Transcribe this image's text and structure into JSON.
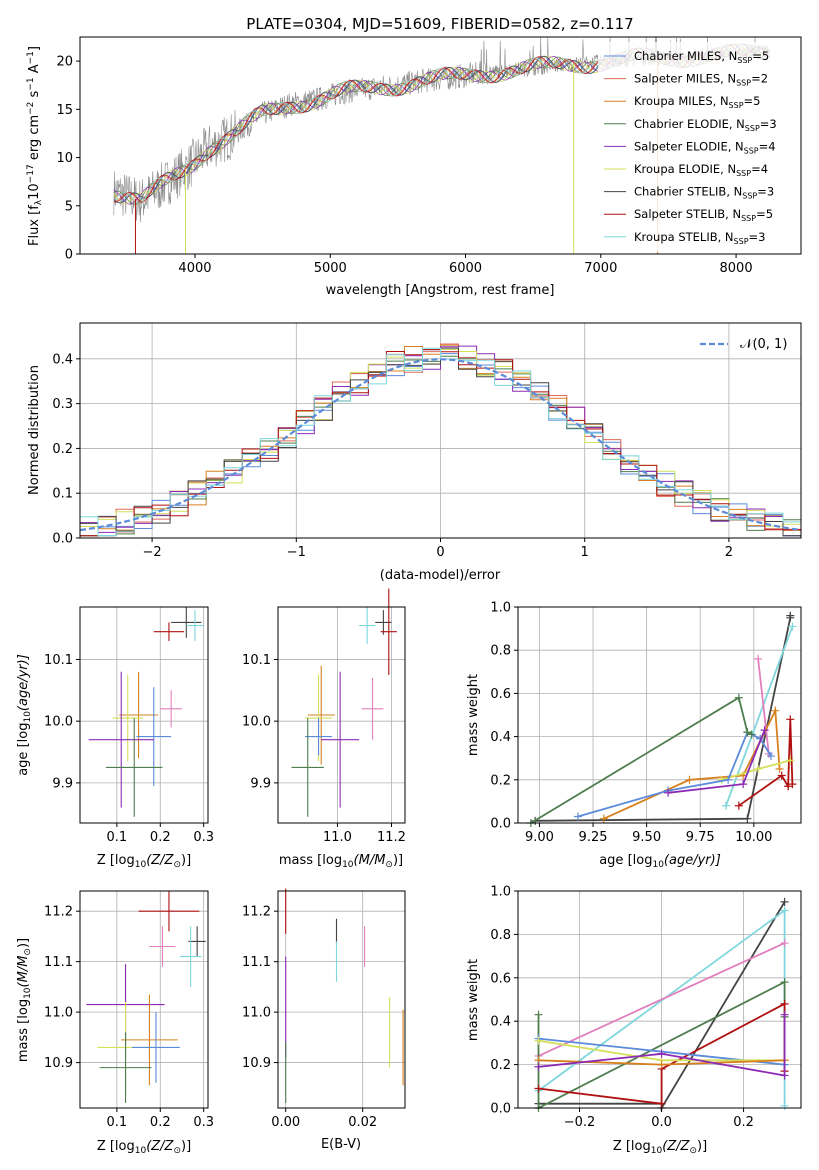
{
  "colors": {
    "chabrier_miles": "#5b8bd9",
    "salpeter_miles": "#e06a5a",
    "kroupa_miles": "#d7801f",
    "chabrier_elodie": "#4e7d4e",
    "salpeter_elodie": "#8e2bb5",
    "kroupa_elodie": "#d4e05a",
    "chabrier_stelib": "#444444",
    "salpeter_stelib": "#b01010",
    "kroupa_stelib": "#7fd7dd",
    "pink": "#e27fbf",
    "normal_curve": "#5b8bd9"
  },
  "panel_spectrum": {
    "title": "PLATE=0304, MJD=51609, FIBERID=0582, z=0.117",
    "xlabel": "wavelength [Angstrom, rest frame]",
    "ylabel": "Flux [f",
    "ylabel_parts": {
      "pre": "Flux [f",
      "sub": "λ",
      "mid1": "10",
      "sup1": "−17",
      "mid2": " erg cm",
      "sup2": "−2",
      "mid3": " s",
      "sup3": "−1",
      "mid4": " A",
      "sup4": "−1",
      "post": "]"
    },
    "xticks": [
      "4000",
      "5000",
      "6000",
      "7000",
      "8000"
    ],
    "yticks": [
      "0",
      "5",
      "10",
      "15",
      "20"
    ],
    "legend": [
      {
        "label": "Chabrier MILES, N",
        "sub": "SSP",
        "val": "=5",
        "color": "chabrier_miles"
      },
      {
        "label": "Salpeter MILES, N",
        "sub": "SSP",
        "val": "=2",
        "color": "salpeter_miles"
      },
      {
        "label": "Kroupa MILES, N",
        "sub": "SSP",
        "val": "=5",
        "color": "kroupa_miles"
      },
      {
        "label": "Chabrier ELODIE, N",
        "sub": "SSP",
        "val": "=3",
        "color": "chabrier_elodie"
      },
      {
        "label": "Salpeter ELODIE, N",
        "sub": "SSP",
        "val": "=4",
        "color": "salpeter_elodie"
      },
      {
        "label": "Kroupa ELODIE, N",
        "sub": "SSP",
        "val": "=4",
        "color": "kroupa_elodie"
      },
      {
        "label": "Chabrier STELIB, N",
        "sub": "SSP",
        "val": "=3",
        "color": "chabrier_stelib"
      },
      {
        "label": "Salpeter STELIB, N",
        "sub": "SSP",
        "val": "=5",
        "color": "salpeter_stelib"
      },
      {
        "label": "Kroupa STELIB, N",
        "sub": "SSP",
        "val": "=3",
        "color": "kroupa_stelib"
      }
    ]
  },
  "panel_hist": {
    "xlabel": "(data-model)/error",
    "ylabel": "Normed distribution",
    "xticks": [
      "−2",
      "−1",
      "0",
      "1",
      "2"
    ],
    "yticks": [
      "0.0",
      "0.1",
      "0.2",
      "0.3",
      "0.4"
    ],
    "legend": "𝒩(0, 1)"
  },
  "panel_age_Z": {
    "xlabel": "Z [log",
    "xlabel_parts": {
      "pre": "Z [log",
      "sub": "10",
      "post": "(Z/Z",
      "sub2": "⊙",
      "post2": ")]"
    },
    "ylabel_parts": {
      "pre": "age  [log",
      "sub": "10",
      "post": "(age/yr)]"
    },
    "xticks": [
      "0.1",
      "0.2",
      "0.3"
    ],
    "yticks": [
      "9.9",
      "10.0",
      "10.1"
    ]
  },
  "panel_age_mass": {
    "xlabel_parts": {
      "pre": "mass [log",
      "sub": "10",
      "post": "(M/M",
      "sub2": "⊙",
      "post2": ")]"
    },
    "xticks": [
      "11.0",
      "11.2"
    ],
    "yticks": [
      "9.9",
      "10.0",
      "10.1"
    ]
  },
  "panel_mw_age": {
    "xlabel_parts": {
      "pre": "age  [log",
      "sub": "10",
      "post": "(age/yr)]"
    },
    "ylabel": "mass weight",
    "xticks": [
      "9.00",
      "9.25",
      "9.50",
      "9.75",
      "10.00"
    ],
    "yticks": [
      "0.0",
      "0.2",
      "0.4",
      "0.6",
      "0.8",
      "1.0"
    ]
  },
  "panel_mass_Z": {
    "xlabel_parts": {
      "pre": "Z [log",
      "sub": "10",
      "post": "(Z/Z",
      "sub2": "⊙",
      "post2": ")]"
    },
    "ylabel_parts": {
      "pre": "mass [log",
      "sub": "10",
      "post": "(M/M",
      "sub2": "⊙",
      "post2": ")]"
    },
    "xticks": [
      "0.1",
      "0.2",
      "0.3"
    ],
    "yticks": [
      "10.9",
      "11.0",
      "11.1",
      "11.2"
    ]
  },
  "panel_mass_ebv": {
    "xlabel": "E(B-V)",
    "xticks": [
      "0.00",
      "0.02"
    ],
    "yticks": [
      "10.9",
      "11.0",
      "11.1",
      "11.2"
    ]
  },
  "panel_mw_Z": {
    "xlabel_parts": {
      "pre": "Z [log",
      "sub": "10",
      "post": "(Z/Z",
      "sub2": "⊙",
      "post2": ")]"
    },
    "ylabel": "mass weight",
    "xticks": [
      "−0.2",
      "0.0",
      "0.2"
    ],
    "yticks": [
      "0.0",
      "0.2",
      "0.4",
      "0.6",
      "0.8",
      "1.0"
    ]
  },
  "chart_data": [
    {
      "type": "line",
      "title": "PLATE=0304, MJD=51609, FIBERID=0582, z=0.117",
      "xlabel": "wavelength [Angstrom, rest frame]",
      "ylabel": "Flux [fλ10^-17 erg cm^-2 s^-1 A^-1]",
      "xlim": [
        3150,
        8480
      ],
      "ylim": [
        0,
        22.5
      ],
      "continuum": {
        "x": [
          3400,
          3600,
          3800,
          3950,
          4100,
          4300,
          4500,
          4700,
          4900,
          5100,
          5300,
          5500,
          5700,
          5900,
          6100,
          6300,
          6500,
          6700,
          6900,
          7100,
          7300,
          7500,
          7700,
          7900,
          8100,
          8250
        ],
        "y": [
          6.5,
          5.5,
          7.5,
          9.0,
          11.0,
          12.5,
          14.5,
          15.5,
          16.0,
          16.8,
          17.2,
          17.5,
          18.0,
          18.3,
          18.7,
          19.0,
          19.3,
          19.6,
          19.8,
          20.0,
          20.3,
          20.3,
          20.5,
          20.6,
          20.8,
          21.0
        ]
      },
      "series": [
        "Chabrier MILES",
        "Salpeter MILES",
        "Kroupa MILES",
        "Chabrier ELODIE",
        "Salpeter ELODIE",
        "Kroupa ELODIE",
        "Chabrier STELIB",
        "Salpeter STELIB",
        "Kroupa STELIB"
      ]
    },
    {
      "type": "bar",
      "title": "",
      "xlabel": "(data-model)/error",
      "ylabel": "Normed distribution",
      "xlim": [
        -2.5,
        2.5
      ],
      "ylim": [
        0,
        0.48
      ],
      "legend": "N(0,1)"
    },
    {
      "type": "scatter",
      "xlabel": "Z [log10(Z/Zsun)]",
      "ylabel": "age [log10(age/yr)]",
      "xlim": [
        0.015,
        0.31
      ],
      "ylim": [
        9.835,
        10.185
      ],
      "points": [
        {
          "c": "chabrier_stelib",
          "x": 0.26,
          "y": 10.16,
          "xe": 0.035,
          "ye": 0.025
        },
        {
          "c": "salpeter_stelib",
          "x": 0.22,
          "y": 10.145,
          "xe": 0.035,
          "ye": 0.015
        },
        {
          "c": "kroupa_stelib",
          "x": 0.28,
          "y": 10.155,
          "xe": 0.02,
          "ye": 0.025
        },
        {
          "c": "pink",
          "x": 0.225,
          "y": 10.02,
          "xe": 0.025,
          "ye": 0.03
        },
        {
          "c": "kroupa_miles",
          "x": 0.15,
          "y": 10.01,
          "xe": 0.045,
          "ye": 0.07
        },
        {
          "c": "kroupa_elodie",
          "x": 0.125,
          "y": 10.005,
          "xe": 0.035,
          "ye": 0.07
        },
        {
          "c": "chabrier_miles",
          "x": 0.185,
          "y": 9.975,
          "xe": 0.04,
          "ye": 0.08
        },
        {
          "c": "salpeter_elodie",
          "x": 0.11,
          "y": 9.97,
          "xe": 0.075,
          "ye": 0.11
        },
        {
          "c": "chabrier_elodie",
          "x": 0.14,
          "y": 9.925,
          "xe": 0.065,
          "ye": 0.08
        }
      ]
    },
    {
      "type": "scatter",
      "xlabel": "mass [log10(M/Msun)]",
      "ylabel": "",
      "xlim": [
        10.78,
        11.25
      ],
      "ylim": [
        9.835,
        10.185
      ],
      "points": [
        {
          "c": "chabrier_stelib",
          "x": 11.17,
          "y": 10.16,
          "xe": 0.03,
          "ye": 0.02
        },
        {
          "c": "salpeter_stelib",
          "x": 11.19,
          "y": 10.145,
          "xe": 0.03,
          "ye": 0.07
        },
        {
          "c": "kroupa_stelib",
          "x": 11.11,
          "y": 10.155,
          "xe": 0.03,
          "ye": 0.03
        },
        {
          "c": "pink",
          "x": 11.13,
          "y": 10.02,
          "xe": 0.04,
          "ye": 0.05
        },
        {
          "c": "kroupa_miles",
          "x": 10.94,
          "y": 10.01,
          "xe": 0.05,
          "ye": 0.08
        },
        {
          "c": "kroupa_elodie",
          "x": 10.93,
          "y": 10.005,
          "xe": 0.05,
          "ye": 0.07
        },
        {
          "c": "chabrier_miles",
          "x": 10.93,
          "y": 9.975,
          "xe": 0.05,
          "ye": 0.03
        },
        {
          "c": "salpeter_elodie",
          "x": 11.01,
          "y": 9.97,
          "xe": 0.07,
          "ye": 0.11
        },
        {
          "c": "chabrier_elodie",
          "x": 10.89,
          "y": 9.925,
          "xe": 0.06,
          "ye": 0.08
        }
      ]
    },
    {
      "type": "line",
      "xlabel": "age [log10(age/yr)]",
      "ylabel": "mass weight",
      "xlim": [
        8.9,
        10.22
      ],
      "ylim": [
        0,
        1
      ],
      "series": [
        {
          "c": "chabrier_stelib",
          "x": [
            8.98,
            9.97,
            10.17,
            10.17
          ],
          "y": [
            0.01,
            0.02,
            0.95,
            0.96
          ]
        },
        {
          "c": "kroupa_stelib",
          "x": [
            9.87,
            10.18
          ],
          "y": [
            0.08,
            0.91
          ]
        },
        {
          "c": "salpeter_stelib",
          "x": [
            9.93,
            10.13,
            10.16,
            10.17,
            10.18
          ],
          "y": [
            0.08,
            0.22,
            0.17,
            0.48,
            0.18
          ]
        },
        {
          "c": "pink",
          "x": [
            10.02,
            10.07
          ],
          "y": [
            0.76,
            0.32
          ]
        },
        {
          "c": "kroupa_miles",
          "x": [
            9.3,
            9.7,
            9.95,
            10.1,
            10.12
          ],
          "y": [
            0.02,
            0.2,
            0.22,
            0.52,
            0.25
          ]
        },
        {
          "c": "kroupa_elodie",
          "x": [
            9.85,
            10.02,
            10.17
          ],
          "y": [
            0.2,
            0.25,
            0.29
          ]
        },
        {
          "c": "chabrier_miles",
          "x": [
            9.18,
            9.6,
            9.88,
            9.97,
            10.03,
            10.08
          ],
          "y": [
            0.03,
            0.15,
            0.2,
            0.42,
            0.39,
            0.31
          ]
        },
        {
          "c": "salpeter_elodie",
          "x": [
            9.6,
            9.95,
            10.05
          ],
          "y": [
            0.14,
            0.18,
            0.43
          ]
        },
        {
          "c": "chabrier_elodie",
          "x": [
            8.96,
            9.93,
            9.97,
            9.99
          ],
          "y": [
            0.0,
            0.58,
            0.42,
            0.41
          ]
        }
      ]
    },
    {
      "type": "scatter",
      "xlabel": "Z [log10(Z/Zsun)]",
      "ylabel": "mass [log10(M/Msun)]",
      "xlim": [
        0.015,
        0.31
      ],
      "ylim": [
        10.81,
        11.24
      ],
      "points": [
        {
          "c": "chabrier_stelib",
          "x": 0.285,
          "y": 11.14,
          "xe": 0.02,
          "ye": 0.03
        },
        {
          "c": "salpeter_stelib",
          "x": 0.22,
          "y": 11.2,
          "xe": 0.07,
          "ye": 0.04
        },
        {
          "c": "kroupa_stelib",
          "x": 0.27,
          "y": 11.11,
          "xe": 0.025,
          "ye": 0.06
        },
        {
          "c": "pink",
          "x": 0.205,
          "y": 11.13,
          "xe": 0.03,
          "ye": 0.04
        },
        {
          "c": "salpeter_elodie",
          "x": 0.12,
          "y": 11.015,
          "xe": 0.09,
          "ye": 0.08
        },
        {
          "c": "kroupa_miles",
          "x": 0.175,
          "y": 10.945,
          "xe": 0.065,
          "ye": 0.09
        },
        {
          "c": "kroupa_elodie",
          "x": 0.12,
          "y": 10.93,
          "xe": 0.065,
          "ye": 0.09
        },
        {
          "c": "chabrier_miles",
          "x": 0.19,
          "y": 10.93,
          "xe": 0.055,
          "ye": 0.07
        },
        {
          "c": "chabrier_elodie",
          "x": 0.12,
          "y": 10.89,
          "xe": 0.06,
          "ye": 0.07
        }
      ]
    },
    {
      "type": "scatter",
      "xlabel": "E(B-V)",
      "ylabel": "",
      "xlim": [
        -0.002,
        0.031
      ],
      "ylim": [
        10.81,
        11.24
      ],
      "points": [
        {
          "c": "salpeter_stelib",
          "x": 0.0,
          "y": 11.2,
          "xe": 0,
          "ye": 0.045
        },
        {
          "c": "salpeter_elodie",
          "x": 0.0,
          "y": 11.01,
          "xe": 0,
          "ye": 0.1
        },
        {
          "c": "chabrier_elodie",
          "x": 0.0,
          "y": 10.88,
          "xe": 0,
          "ye": 0.06
        },
        {
          "c": "chabrier_stelib",
          "x": 0.0132,
          "y": 11.16,
          "xe": 0,
          "ye": 0.025
        },
        {
          "c": "kroupa_stelib",
          "x": 0.0132,
          "y": 11.1,
          "xe": 0,
          "ye": 0.04
        },
        {
          "c": "pink",
          "x": 0.0205,
          "y": 11.13,
          "xe": 0,
          "ye": 0.04
        },
        {
          "c": "kroupa_elodie",
          "x": 0.027,
          "y": 10.96,
          "xe": 0,
          "ye": 0.07
        },
        {
          "c": "kroupa_miles",
          "x": 0.0305,
          "y": 10.93,
          "xe": 0,
          "ye": 0.075
        }
      ]
    },
    {
      "type": "line",
      "xlabel": "Z [log10(Z/Zsun)]",
      "ylabel": "mass weight",
      "xlim": [
        -0.35,
        0.34
      ],
      "ylim": [
        0,
        1
      ],
      "series": [
        {
          "c": "chabrier_stelib",
          "x": [
            -0.3,
            0.0,
            0.0,
            0.3
          ],
          "y": [
            0.02,
            0.02,
            0.0,
            0.95
          ]
        },
        {
          "c": "kroupa_stelib",
          "x": [
            -0.3,
            0.3,
            0.3
          ],
          "y": [
            0.08,
            0.91,
            0.01
          ]
        },
        {
          "c": "pink",
          "x": [
            -0.3,
            0.3
          ],
          "y": [
            0.24,
            0.76
          ]
        },
        {
          "c": "chabrier_elodie",
          "x": [
            -0.3,
            -0.3,
            0.3,
            0.3
          ],
          "y": [
            0.43,
            0.0,
            0.58,
            0.42
          ]
        },
        {
          "c": "salpeter_stelib",
          "x": [
            -0.3,
            0.0,
            0.0,
            0.3,
            0.3
          ],
          "y": [
            0.09,
            0.02,
            0.18,
            0.48,
            0.17
          ]
        },
        {
          "c": "chabrier_miles",
          "x": [
            -0.3,
            0.3
          ],
          "y": [
            0.32,
            0.2
          ]
        },
        {
          "c": "kroupa_elodie",
          "x": [
            -0.3,
            0.0,
            0.3
          ],
          "y": [
            0.31,
            0.22,
            0.22
          ]
        },
        {
          "c": "kroupa_miles",
          "x": [
            -0.3,
            0.0,
            0.3
          ],
          "y": [
            0.22,
            0.2,
            0.22
          ]
        },
        {
          "c": "salpeter_elodie",
          "x": [
            -0.3,
            0.0,
            0.3,
            0.3
          ],
          "y": [
            0.19,
            0.25,
            0.15,
            0.43
          ]
        }
      ]
    }
  ]
}
